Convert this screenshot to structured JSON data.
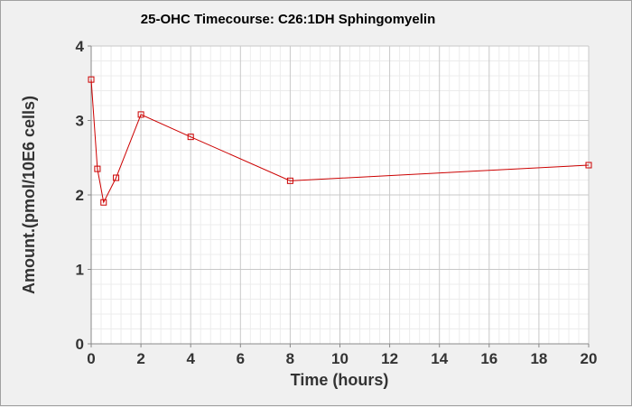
{
  "chart_data": {
    "type": "line",
    "title": "25-OHC Timecourse: C26:1DH Sphingomyelin",
    "xlabel": "Time (hours)",
    "ylabel": "Amount.(pmol/10E6 cells)",
    "xlim": [
      0,
      20
    ],
    "ylim": [
      0,
      4
    ],
    "x_ticks": [
      0,
      2,
      4,
      6,
      8,
      10,
      12,
      14,
      16,
      18,
      20
    ],
    "y_ticks": [
      0,
      1,
      2,
      3,
      4
    ],
    "grid": true,
    "legend": "none",
    "series": [
      {
        "color": "#cc0000",
        "marker": "square",
        "x": [
          0,
          0.25,
          0.5,
          1,
          2,
          4,
          8,
          20
        ],
        "y": [
          3.55,
          2.35,
          1.9,
          2.23,
          3.08,
          2.78,
          2.19,
          2.4
        ]
      }
    ]
  }
}
